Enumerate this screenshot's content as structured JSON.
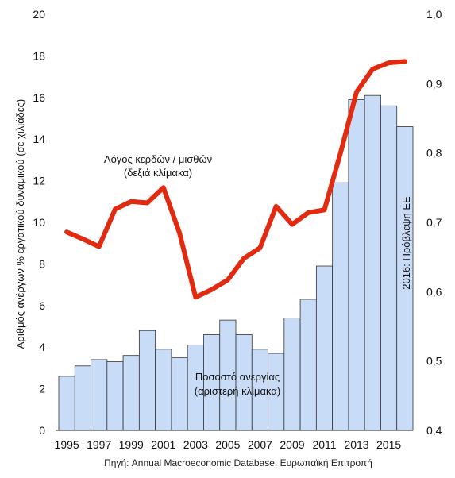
{
  "chart_data": {
    "type": "bar+line",
    "x": [
      1995,
      1996,
      1997,
      1998,
      1999,
      2000,
      2001,
      2002,
      2003,
      2004,
      2005,
      2006,
      2007,
      2008,
      2009,
      2010,
      2011,
      2012,
      2013,
      2014,
      2015,
      2016
    ],
    "x_tick_labels": [
      "1995",
      "1997",
      "1999",
      "2001",
      "2003",
      "2005",
      "2007",
      "2009",
      "2011",
      "2013",
      "2015"
    ],
    "series": [
      {
        "name": "Ποσοστό ανεργίας (αριστερή κλίμακα)",
        "type": "bar",
        "axis": "left",
        "color": "#c9dcf7",
        "values": [
          2.6,
          3.1,
          3.4,
          3.3,
          3.6,
          4.8,
          3.9,
          3.5,
          4.1,
          4.6,
          5.3,
          4.6,
          3.9,
          3.7,
          5.4,
          6.3,
          7.9,
          11.9,
          15.9,
          16.1,
          15.6,
          14.6
        ]
      },
      {
        "name": "Λόγος κερδών / μισθών (δεξιά κλίμακα)",
        "type": "line",
        "axis": "right",
        "color": "#e12a10",
        "values": [
          0.686,
          0.676,
          0.665,
          0.719,
          0.73,
          0.728,
          0.75,
          0.685,
          0.592,
          0.603,
          0.617,
          0.648,
          0.663,
          0.723,
          0.697,
          0.714,
          0.718,
          0.8,
          0.888,
          0.921,
          0.93,
          0.932
        ]
      }
    ],
    "left_axis": {
      "label": "Αριθμός ανέργων % εργατικού δυναμικού (σε χιλιάδες)",
      "min": 0,
      "max": 20,
      "ticks": [
        "0",
        "2",
        "4",
        "6",
        "8",
        "10",
        "12",
        "14",
        "16",
        "18",
        "20"
      ]
    },
    "right_axis": {
      "min": 0.4,
      "max": 1.0,
      "ticks": [
        "0,4",
        "0,5",
        "0,6",
        "0,7",
        "0,8",
        "0,9",
        "1,0"
      ]
    },
    "annotations": {
      "line_label_1": "Λόγος κερδών / μισθών",
      "line_label_2": "(δεξιά κλίμακα)",
      "bar_label_1": "Ποσοστό ανεργίας",
      "bar_label_2": "(αριστερή κλίμακα)",
      "forecast_note": "2016: Πρόβλεψη ΕΕ"
    },
    "source": "Πηγή: Annual Macroeconomic Database, Ευρωπαϊκή Επιτροπή",
    "grid": false,
    "legend": "none"
  }
}
